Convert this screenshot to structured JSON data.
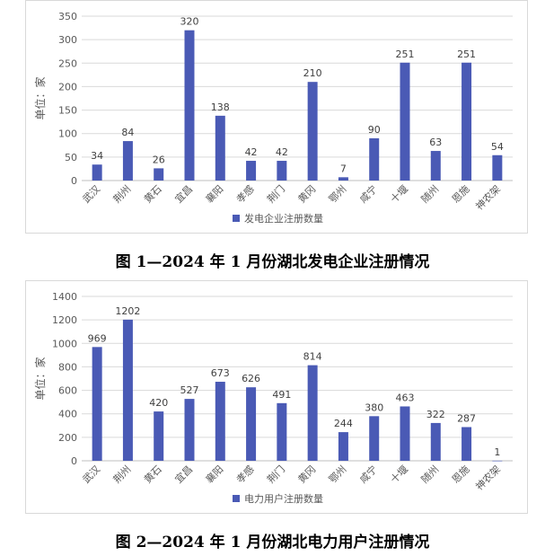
{
  "colors": {
    "bar": "#4a5ab5",
    "grid": "#d9d9d9",
    "axis": "#bfbfbf"
  },
  "chart_data": [
    {
      "type": "bar",
      "caption": "图 1—2024 年 1 月份湖北发电企业注册情况",
      "ylabel": "单位：家",
      "legend": "发电企业注册数量",
      "legend_position": "bottom",
      "grid": true,
      "ylim": [
        0,
        350
      ],
      "yticks": [
        0,
        50,
        100,
        150,
        200,
        250,
        300,
        350
      ],
      "categories": [
        "武汉",
        "荆州",
        "黄石",
        "宜昌",
        "襄阳",
        "孝感",
        "荆门",
        "黄冈",
        "鄂州",
        "咸宁",
        "十堰",
        "随州",
        "恩施",
        "神农架"
      ],
      "values": [
        34,
        84,
        26,
        320,
        138,
        42,
        42,
        210,
        7,
        90,
        251,
        63,
        251,
        54
      ]
    },
    {
      "type": "bar",
      "caption": "图 2—2024 年 1 月份湖北电力用户注册情况",
      "ylabel": "单位：家",
      "legend": "电力用户注册数量",
      "legend_position": "bottom",
      "grid": true,
      "ylim": [
        0,
        1400
      ],
      "yticks": [
        0,
        200,
        400,
        600,
        800,
        1000,
        1200,
        1400
      ],
      "categories": [
        "武汉",
        "荆州",
        "黄石",
        "宜昌",
        "襄阳",
        "孝感",
        "荆门",
        "黄冈",
        "鄂州",
        "咸宁",
        "十堰",
        "随州",
        "恩施",
        "神农架"
      ],
      "values": [
        969,
        1202,
        420,
        527,
        673,
        626,
        491,
        814,
        244,
        380,
        463,
        322,
        287,
        1
      ]
    }
  ]
}
